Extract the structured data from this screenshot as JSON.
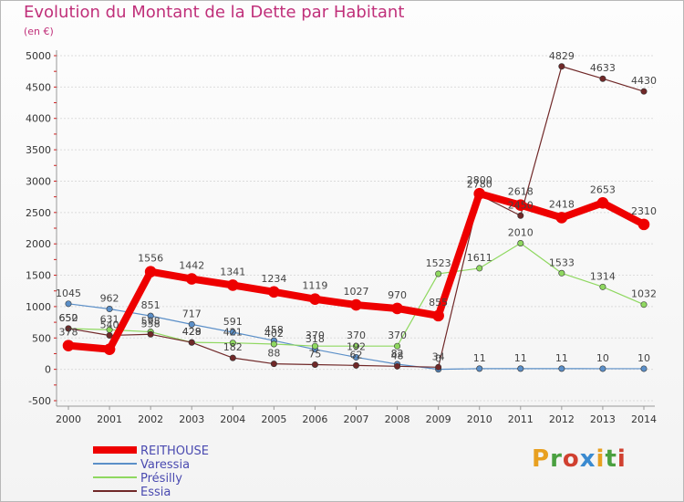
{
  "header": {
    "title": "Evolution du Montant de la Dette par Habitant",
    "subtitle": "(en €)"
  },
  "logo": {
    "text": "Proxiti",
    "colors": [
      "#e8a020",
      "#4aa040",
      "#d04030",
      "#3a8ad0",
      "#e8a020",
      "#4aa040",
      "#d04030"
    ]
  },
  "chart_data": {
    "type": "line",
    "x": [
      "2000",
      "2001",
      "2002",
      "2003",
      "2004",
      "2005",
      "2006",
      "2007",
      "2008",
      "2009",
      "2010",
      "2011",
      "2012",
      "2013",
      "2014"
    ],
    "ylim": [
      -500,
      5000
    ],
    "yticks": [
      -500,
      0,
      500,
      1000,
      1500,
      2000,
      2500,
      3000,
      3500,
      4000,
      4500,
      5000
    ],
    "grid": "horizontal",
    "legend_position": "bottom-left",
    "series": [
      {
        "name": "Varessia",
        "color": "#5b8fc8",
        "width": 1.2,
        "values": [
          1045,
          962,
          851,
          717,
          591,
          458,
          318,
          192,
          82,
          0,
          11,
          11,
          11,
          10,
          10
        ],
        "labels": [
          "1045",
          "962",
          "851",
          "717",
          "591",
          "458",
          "318",
          "192",
          "82",
          "0",
          "11",
          "11",
          "11",
          "10",
          "10"
        ]
      },
      {
        "name": "Présilly",
        "color": "#8fd860",
        "width": 1.2,
        "values": [
          650,
          631,
          598,
          429,
          421,
          402,
          370,
          370,
          370,
          1523,
          1611,
          2010,
          1533,
          1314,
          1032
        ],
        "labels": [
          "650",
          "631",
          "598",
          "429",
          "421",
          "402",
          "370",
          "370",
          "370",
          "1523",
          "1611",
          "2010",
          "1533",
          "1314",
          "1032"
        ]
      },
      {
        "name": "Essia",
        "color": "#702828",
        "width": 1.2,
        "values": [
          652,
          540,
          558,
          428,
          182,
          88,
          75,
          62,
          48,
          34,
          2780,
          2450,
          4829,
          4633,
          4430
        ],
        "labels": [
          "652",
          "540",
          "558",
          "428",
          "182",
          "88",
          "75",
          "62",
          "48",
          "34",
          "2780",
          "2450",
          "4829",
          "4633",
          "4430"
        ]
      },
      {
        "name": "REITHOUSE",
        "color": "#ee0000",
        "width": 8,
        "values": [
          378,
          320,
          1556,
          1442,
          1341,
          1234,
          1119,
          1027,
          970,
          855,
          2800,
          2618,
          2418,
          2653,
          2310
        ],
        "labels": [
          "378",
          "",
          "1556",
          "1442",
          "1341",
          "1234",
          "1119",
          "1027",
          "970",
          "855",
          "2800",
          "2618",
          "2418",
          "2653",
          "2310"
        ]
      }
    ]
  }
}
